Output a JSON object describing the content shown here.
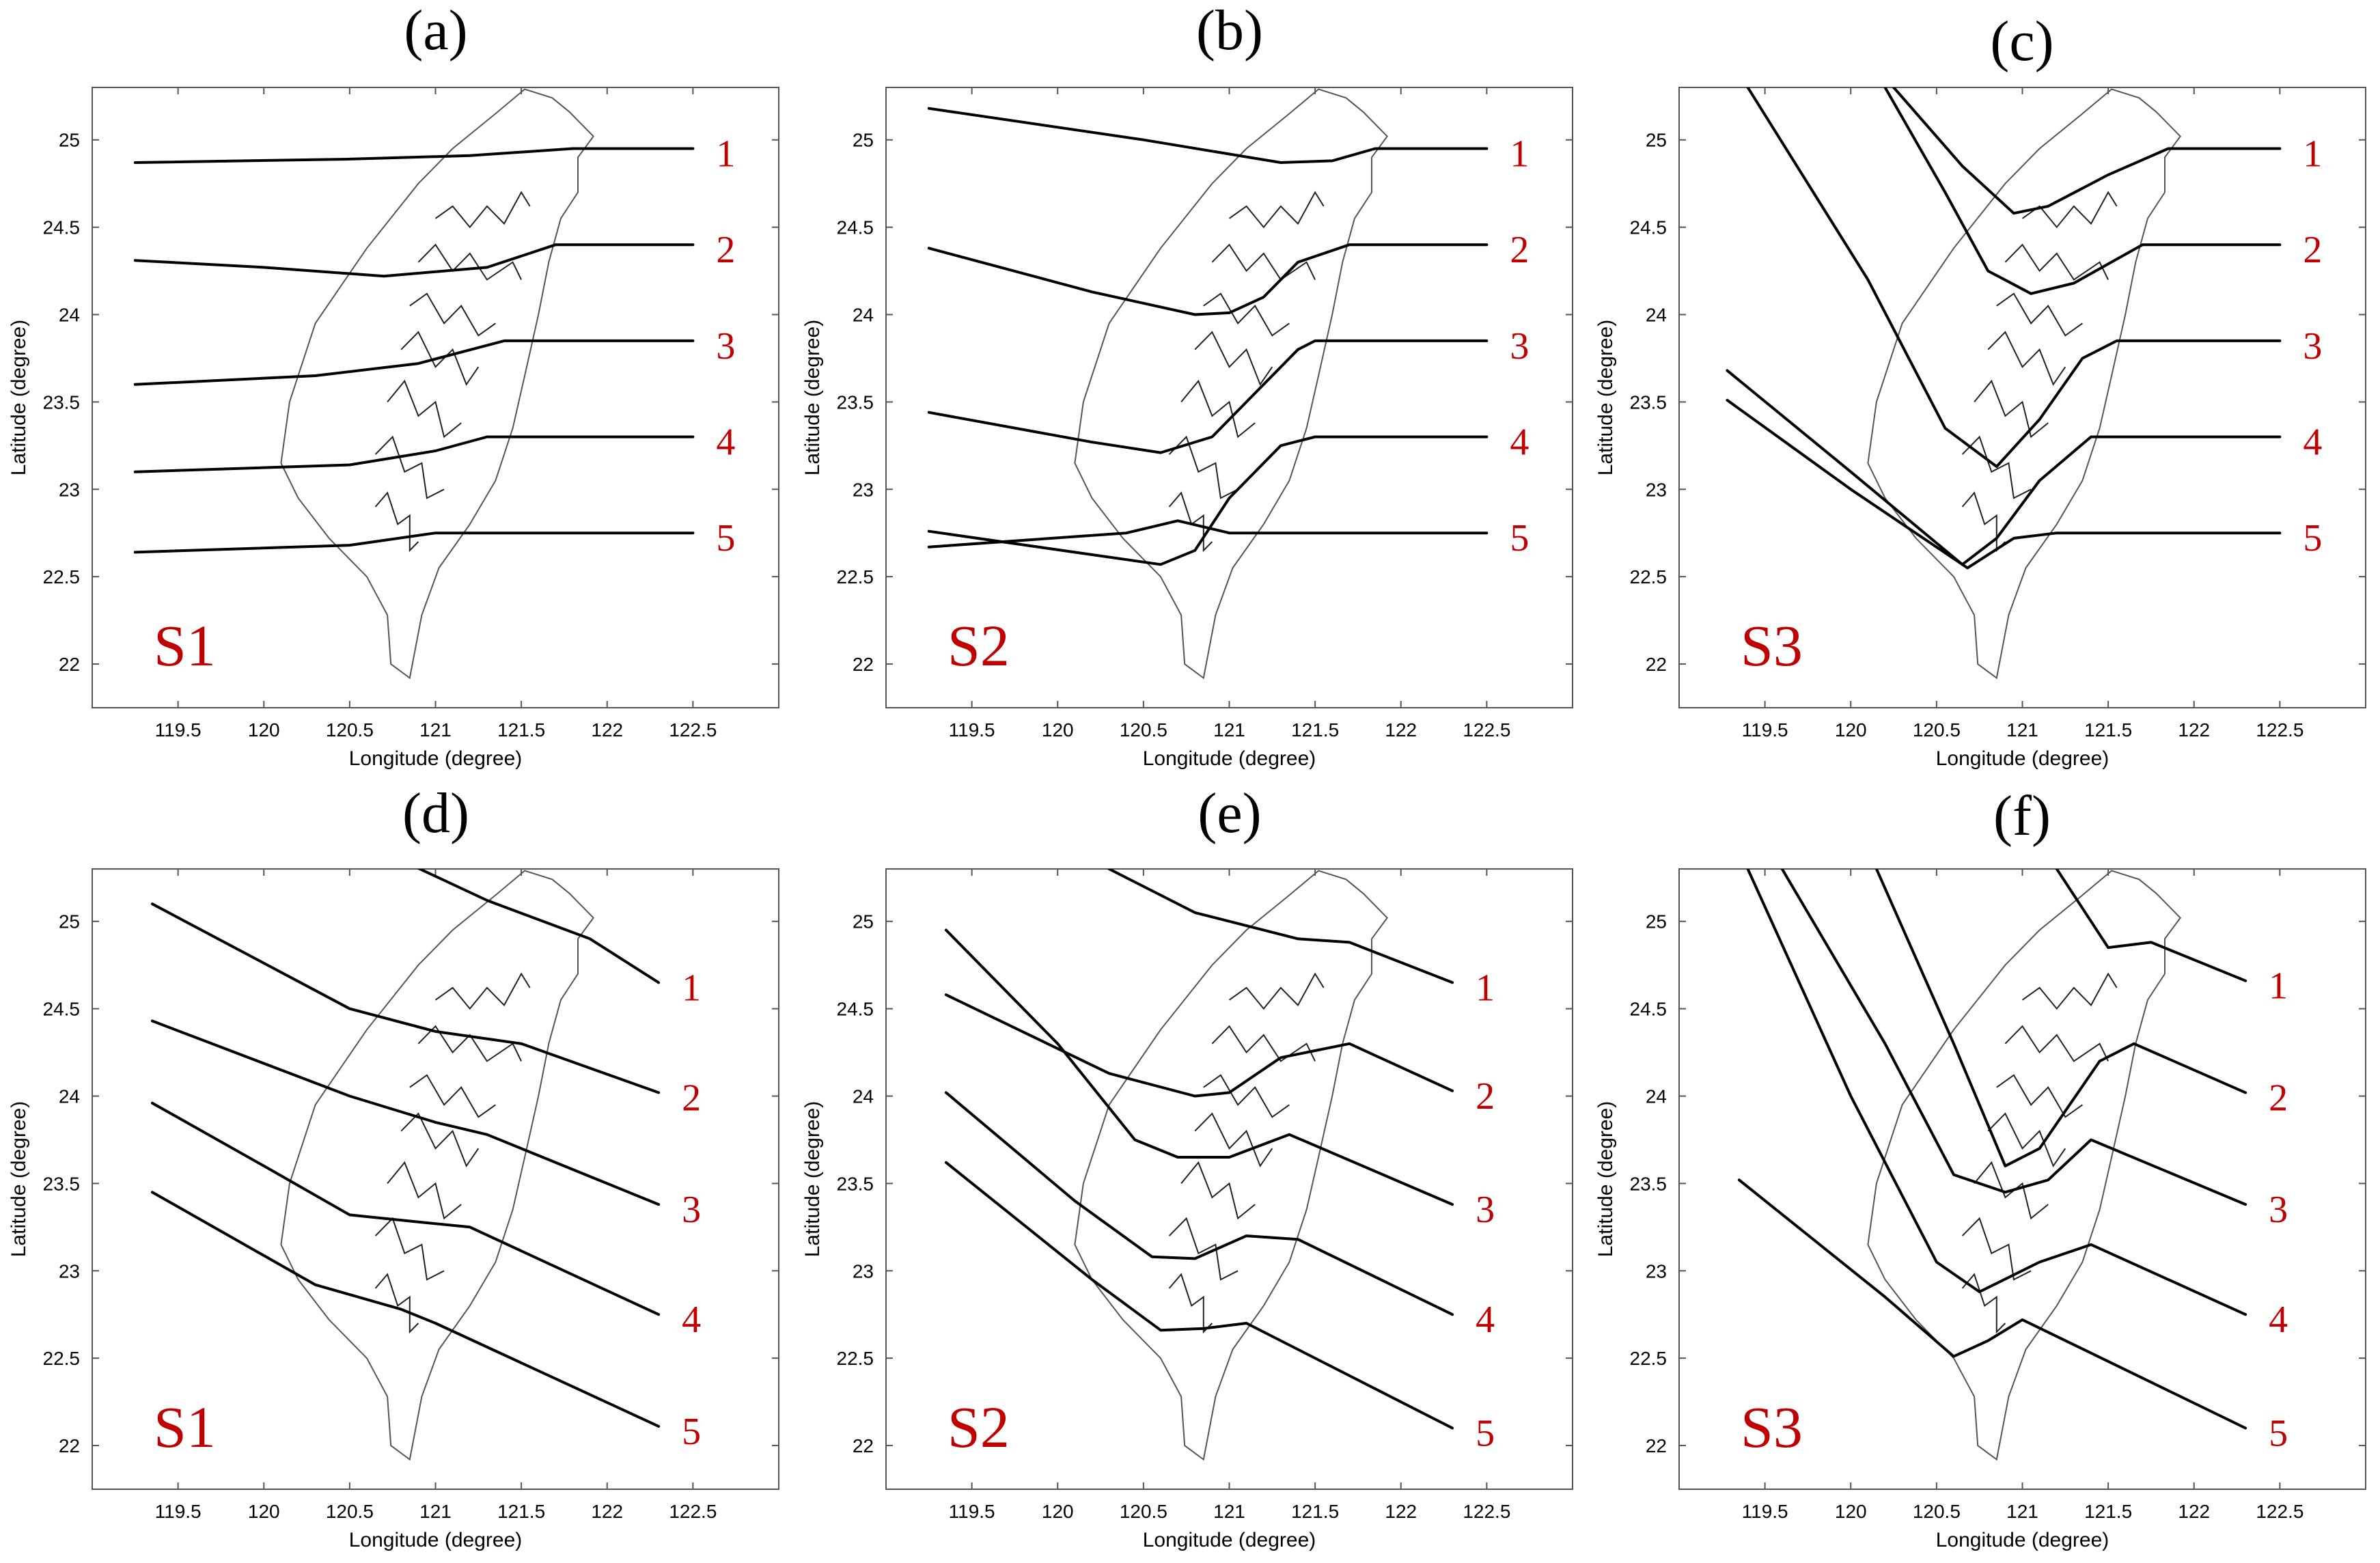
{
  "figure": {
    "x_axis_label": "Longitude (degree)",
    "y_axis_label": "Latitude (degree)",
    "x_ticks": [
      "119.5",
      "120",
      "120.5",
      "121",
      "121.5",
      "122",
      "122.5"
    ],
    "y_ticks": [
      "25",
      "24.5",
      "24",
      "23.5",
      "23",
      "22.5",
      "22"
    ],
    "colors": {
      "track": "#000000",
      "annotation": "#c00000",
      "coast": "#555555"
    }
  },
  "chart_data": [
    {
      "type": "line",
      "label": "(a)",
      "scenario": "S1",
      "xlabel": "Longitude (degree)",
      "ylabel": "Latitude (degree)",
      "xlim": [
        119.0,
        123.0
      ],
      "ylim": [
        21.75,
        25.3
      ],
      "series": [
        {
          "name": "1",
          "points": [
            [
              119.25,
              24.87
            ],
            [
              120.5,
              24.89
            ],
            [
              121.2,
              24.91
            ],
            [
              121.8,
              24.95
            ],
            [
              122.5,
              24.95
            ]
          ]
        },
        {
          "name": "2",
          "points": [
            [
              119.25,
              24.31
            ],
            [
              120.0,
              24.27
            ],
            [
              120.7,
              24.22
            ],
            [
              121.3,
              24.27
            ],
            [
              121.7,
              24.4
            ],
            [
              122.5,
              24.4
            ]
          ]
        },
        {
          "name": "3",
          "points": [
            [
              119.25,
              23.6
            ],
            [
              120.3,
              23.65
            ],
            [
              120.9,
              23.72
            ],
            [
              121.4,
              23.85
            ],
            [
              122.5,
              23.85
            ]
          ]
        },
        {
          "name": "4",
          "points": [
            [
              119.25,
              23.1
            ],
            [
              120.5,
              23.14
            ],
            [
              121.0,
              23.22
            ],
            [
              121.3,
              23.3
            ],
            [
              122.5,
              23.3
            ]
          ]
        },
        {
          "name": "5",
          "points": [
            [
              119.25,
              22.64
            ],
            [
              120.5,
              22.68
            ],
            [
              121.0,
              22.75
            ],
            [
              122.5,
              22.75
            ]
          ]
        }
      ]
    },
    {
      "type": "line",
      "label": "(b)",
      "scenario": "S2",
      "xlabel": "Longitude (degree)",
      "ylabel": "Latitude (degree)",
      "xlim": [
        119.0,
        123.0
      ],
      "ylim": [
        21.75,
        25.3
      ],
      "series": [
        {
          "name": "1",
          "points": [
            [
              119.25,
              25.18
            ],
            [
              120.5,
              25.0
            ],
            [
              121.3,
              24.87
            ],
            [
              121.6,
              24.88
            ],
            [
              121.85,
              24.95
            ],
            [
              122.5,
              24.95
            ]
          ]
        },
        {
          "name": "2",
          "points": [
            [
              119.25,
              24.38
            ],
            [
              120.2,
              24.13
            ],
            [
              120.8,
              24.0
            ],
            [
              121.0,
              24.01
            ],
            [
              121.2,
              24.1
            ],
            [
              121.4,
              24.3
            ],
            [
              121.7,
              24.4
            ],
            [
              122.5,
              24.4
            ]
          ]
        },
        {
          "name": "3",
          "points": [
            [
              119.25,
              23.44
            ],
            [
              120.2,
              23.27
            ],
            [
              120.6,
              23.21
            ],
            [
              120.9,
              23.3
            ],
            [
              121.1,
              23.5
            ],
            [
              121.4,
              23.8
            ],
            [
              121.5,
              23.85
            ],
            [
              122.5,
              23.85
            ]
          ]
        },
        {
          "name": "4",
          "points": [
            [
              119.25,
              22.76
            ],
            [
              120.1,
              22.64
            ],
            [
              120.6,
              22.57
            ],
            [
              120.8,
              22.65
            ],
            [
              121.0,
              22.95
            ],
            [
              121.3,
              23.25
            ],
            [
              121.5,
              23.3
            ],
            [
              122.5,
              23.3
            ]
          ]
        },
        {
          "name": "5",
          "points": [
            [
              119.25,
              22.67
            ],
            [
              120.4,
              22.75
            ],
            [
              120.7,
              22.82
            ],
            [
              121.0,
              22.75
            ],
            [
              122.5,
              22.75
            ]
          ]
        }
      ]
    },
    {
      "type": "line",
      "label": "(c)",
      "scenario": "S3",
      "xlabel": "Longitude (degree)",
      "ylabel": "Latitude (degree)",
      "xlim": [
        119.0,
        123.0
      ],
      "ylim": [
        21.75,
        25.3
      ],
      "series": [
        {
          "name": "1",
          "points": [
            [
              120.25,
              25.3
            ],
            [
              120.65,
              24.85
            ],
            [
              120.95,
              24.58
            ],
            [
              121.15,
              24.62
            ],
            [
              121.5,
              24.8
            ],
            [
              121.85,
              24.95
            ],
            [
              122.5,
              24.95
            ]
          ]
        },
        {
          "name": "2",
          "points": [
            [
              120.2,
              25.3
            ],
            [
              120.55,
              24.7
            ],
            [
              120.8,
              24.25
            ],
            [
              121.05,
              24.12
            ],
            [
              121.3,
              24.18
            ],
            [
              121.7,
              24.4
            ],
            [
              122.5,
              24.4
            ]
          ]
        },
        {
          "name": "3",
          "points": [
            [
              119.4,
              25.3
            ],
            [
              120.1,
              24.2
            ],
            [
              120.55,
              23.35
            ],
            [
              120.85,
              23.13
            ],
            [
              121.1,
              23.4
            ],
            [
              121.35,
              23.75
            ],
            [
              121.55,
              23.85
            ],
            [
              122.5,
              23.85
            ]
          ]
        },
        {
          "name": "4",
          "points": [
            [
              119.28,
              23.68
            ],
            [
              120.0,
              23.1
            ],
            [
              120.65,
              22.57
            ],
            [
              120.85,
              22.72
            ],
            [
              121.1,
              23.05
            ],
            [
              121.4,
              23.3
            ],
            [
              122.5,
              23.3
            ]
          ]
        },
        {
          "name": "5",
          "points": [
            [
              119.28,
              23.51
            ],
            [
              120.0,
              23.0
            ],
            [
              120.68,
              22.55
            ],
            [
              120.95,
              22.72
            ],
            [
              121.2,
              22.75
            ],
            [
              122.5,
              22.75
            ]
          ]
        }
      ]
    },
    {
      "type": "line",
      "label": "(d)",
      "scenario": "S1",
      "xlabel": "Longitude (degree)",
      "ylabel": "Latitude (degree)",
      "xlim": [
        119.0,
        123.0
      ],
      "ylim": [
        21.75,
        25.3
      ],
      "series": [
        {
          "name": "1",
          "points": [
            [
              120.8,
              25.35
            ],
            [
              121.3,
              25.12
            ],
            [
              121.9,
              24.9
            ],
            [
              122.3,
              24.65
            ]
          ]
        },
        {
          "name": "2",
          "points": [
            [
              119.35,
              25.1
            ],
            [
              120.5,
              24.5
            ],
            [
              121.0,
              24.37
            ],
            [
              121.5,
              24.3
            ],
            [
              122.3,
              24.02
            ]
          ]
        },
        {
          "name": "3",
          "points": [
            [
              119.35,
              24.43
            ],
            [
              120.5,
              24.0
            ],
            [
              121.0,
              23.85
            ],
            [
              121.3,
              23.78
            ],
            [
              122.3,
              23.38
            ]
          ]
        },
        {
          "name": "4",
          "points": [
            [
              119.35,
              23.96
            ],
            [
              120.0,
              23.6
            ],
            [
              120.5,
              23.32
            ],
            [
              120.9,
              23.28
            ],
            [
              121.2,
              23.25
            ],
            [
              122.3,
              22.75
            ]
          ]
        },
        {
          "name": "5",
          "points": [
            [
              119.35,
              23.45
            ],
            [
              120.3,
              22.92
            ],
            [
              120.8,
              22.78
            ],
            [
              121.0,
              22.7
            ],
            [
              122.3,
              22.11
            ]
          ]
        }
      ]
    },
    {
      "type": "line",
      "label": "(e)",
      "scenario": "S2",
      "xlabel": "Longitude (degree)",
      "ylabel": "Latitude (degree)",
      "xlim": [
        119.0,
        123.0
      ],
      "ylim": [
        21.75,
        25.3
      ],
      "series": [
        {
          "name": "1",
          "points": [
            [
              120.3,
              25.3
            ],
            [
              120.8,
              25.05
            ],
            [
              121.4,
              24.9
            ],
            [
              121.7,
              24.88
            ],
            [
              122.3,
              24.65
            ]
          ]
        },
        {
          "name": "2",
          "points": [
            [
              119.35,
              24.58
            ],
            [
              120.3,
              24.13
            ],
            [
              120.8,
              24.0
            ],
            [
              121.0,
              24.02
            ],
            [
              121.3,
              24.22
            ],
            [
              121.7,
              24.3
            ],
            [
              122.3,
              24.03
            ]
          ]
        },
        {
          "name": "3",
          "points": [
            [
              119.35,
              24.95
            ],
            [
              120.0,
              24.3
            ],
            [
              120.45,
              23.75
            ],
            [
              120.7,
              23.65
            ],
            [
              121.0,
              23.65
            ],
            [
              121.35,
              23.78
            ],
            [
              122.3,
              23.38
            ]
          ]
        },
        {
          "name": "4",
          "points": [
            [
              119.35,
              24.02
            ],
            [
              120.1,
              23.4
            ],
            [
              120.55,
              23.08
            ],
            [
              120.8,
              23.07
            ],
            [
              121.1,
              23.2
            ],
            [
              121.4,
              23.18
            ],
            [
              122.3,
              22.75
            ]
          ]
        },
        {
          "name": "5",
          "points": [
            [
              119.35,
              23.62
            ],
            [
              120.2,
              22.95
            ],
            [
              120.6,
              22.66
            ],
            [
              120.85,
              22.67
            ],
            [
              121.1,
              22.7
            ],
            [
              122.3,
              22.1
            ]
          ]
        }
      ]
    },
    {
      "type": "line",
      "label": "(f)",
      "scenario": "S3",
      "xlabel": "Longitude (degree)",
      "ylabel": "Latitude (degree)",
      "xlim": [
        119.0,
        123.0
      ],
      "ylim": [
        21.75,
        25.3
      ],
      "series": [
        {
          "name": "1",
          "points": [
            [
              121.2,
              25.3
            ],
            [
              121.5,
              24.85
            ],
            [
              121.75,
              24.88
            ],
            [
              122.3,
              24.66
            ]
          ]
        },
        {
          "name": "2",
          "points": [
            [
              120.15,
              25.3
            ],
            [
              120.6,
              24.3
            ],
            [
              120.9,
              23.6
            ],
            [
              121.1,
              23.7
            ],
            [
              121.45,
              24.2
            ],
            [
              121.65,
              24.3
            ],
            [
              122.3,
              24.02
            ]
          ]
        },
        {
          "name": "3",
          "points": [
            [
              119.6,
              25.3
            ],
            [
              120.2,
              24.3
            ],
            [
              120.6,
              23.55
            ],
            [
              120.9,
              23.45
            ],
            [
              121.15,
              23.52
            ],
            [
              121.4,
              23.75
            ],
            [
              122.3,
              23.38
            ]
          ]
        },
        {
          "name": "4",
          "points": [
            [
              119.4,
              25.3
            ],
            [
              120.0,
              24.0
            ],
            [
              120.5,
              23.05
            ],
            [
              120.75,
              22.88
            ],
            [
              121.1,
              23.05
            ],
            [
              121.4,
              23.15
            ],
            [
              122.3,
              22.75
            ]
          ]
        },
        {
          "name": "5",
          "points": [
            [
              119.35,
              23.52
            ],
            [
              120.2,
              22.85
            ],
            [
              120.6,
              22.51
            ],
            [
              120.8,
              22.6
            ],
            [
              121.0,
              22.72
            ],
            [
              122.3,
              22.1
            ]
          ]
        }
      ]
    }
  ]
}
